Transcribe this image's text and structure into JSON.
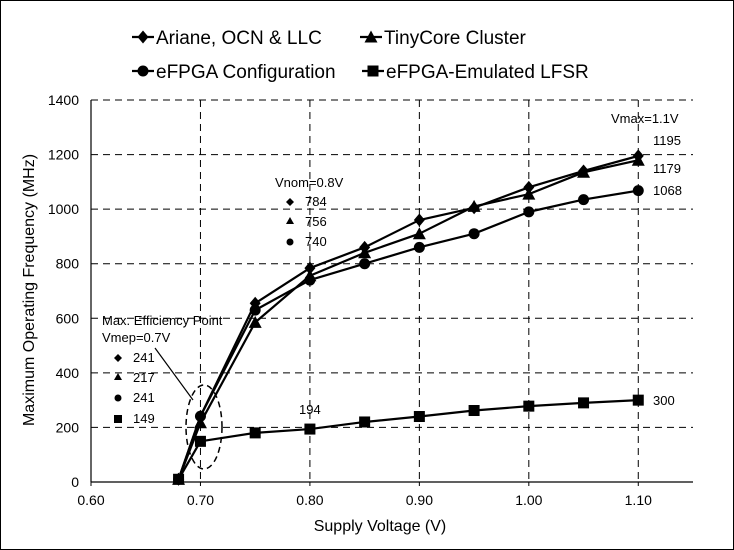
{
  "chart_data": {
    "type": "line",
    "xlabel": "Supply Voltage (V)",
    "ylabel": "Maximum Operating Frequency (MHz)",
    "xlim": [
      0.6,
      1.15
    ],
    "ylim": [
      0,
      1400
    ],
    "x_ticks": [
      "0.60",
      "0.70",
      "0.80",
      "0.90",
      "1.00",
      "1.10"
    ],
    "y_ticks": [
      "0",
      "200",
      "400",
      "600",
      "800",
      "1000",
      "1200",
      "1400"
    ],
    "grid": "dashed",
    "legend_position": "top",
    "series": [
      {
        "name": "Ariane, OCN & LLC",
        "marker": "diamond",
        "x": [
          0.68,
          0.7,
          0.75,
          0.8,
          0.85,
          0.9,
          0.95,
          1.0,
          1.05,
          1.1
        ],
        "y": [
          10,
          241,
          655,
          784,
          860,
          960,
          1005,
          1080,
          1140,
          1195
        ]
      },
      {
        "name": "TinyCore Cluster",
        "marker": "triangle",
        "x": [
          0.68,
          0.7,
          0.75,
          0.8,
          0.85,
          0.9,
          0.95,
          1.0,
          1.05,
          1.1
        ],
        "y": [
          10,
          217,
          585,
          756,
          840,
          910,
          1010,
          1055,
          1135,
          1179
        ]
      },
      {
        "name": "eFPGA Configuration",
        "marker": "circle",
        "x": [
          0.68,
          0.7,
          0.75,
          0.8,
          0.85,
          0.9,
          0.95,
          1.0,
          1.05,
          1.1
        ],
        "y": [
          10,
          241,
          630,
          740,
          800,
          860,
          910,
          990,
          1035,
          1068
        ]
      },
      {
        "name": "eFPGA-Emulated LFSR",
        "marker": "square",
        "x": [
          0.68,
          0.7,
          0.75,
          0.8,
          0.85,
          0.9,
          0.95,
          1.0,
          1.05,
          1.1
        ],
        "y": [
          10,
          149,
          180,
          194,
          220,
          240,
          262,
          278,
          290,
          300
        ]
      }
    ],
    "annotations": {
      "vmax_label": "Vmax=1.1V",
      "vmax_values": [
        "1195",
        "1179",
        "1068",
        "300"
      ],
      "vnom_label": "Vnom=0.8V",
      "vnom_values": [
        "784",
        "756",
        "740"
      ],
      "lfsr_value_080": "194",
      "mep_title": "Max. Efficiency Point",
      "mep_label": "Vmep=0.7V",
      "mep_values": [
        "241",
        "217",
        "241",
        "149"
      ]
    }
  }
}
